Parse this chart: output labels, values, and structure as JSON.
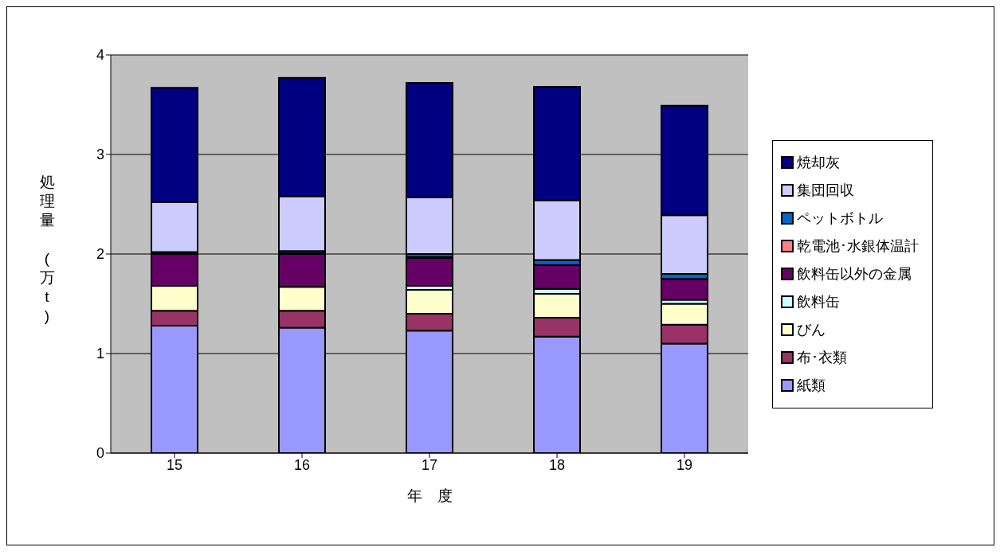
{
  "chart_data": {
    "type": "bar",
    "stacked": true,
    "xlabel": "年　度",
    "ylabel": "処理量　(万t)",
    "categories": [
      "15",
      "16",
      "17",
      "18",
      "19"
    ],
    "series": [
      {
        "name": "紙類",
        "color": "#9999ff",
        "values": [
          1.28,
          1.26,
          1.23,
          1.17,
          1.1
        ]
      },
      {
        "name": "布･衣類",
        "color": "#993366",
        "values": [
          0.15,
          0.17,
          0.17,
          0.19,
          0.19
        ]
      },
      {
        "name": "びん",
        "color": "#ffffcc",
        "values": [
          0.25,
          0.24,
          0.24,
          0.24,
          0.21
        ]
      },
      {
        "name": "飲料缶",
        "color": "#ccffff",
        "values": [
          null,
          null,
          0.04,
          0.05,
          0.04
        ]
      },
      {
        "name": "飲料缶以外の金属",
        "color": "#660066",
        "values": [
          0.32,
          0.33,
          0.28,
          0.24,
          0.21
        ]
      },
      {
        "name": "乾電池･水銀体温計",
        "color": "#ff8080",
        "values": [
          0.01,
          0.01,
          0.01,
          null,
          null
        ]
      },
      {
        "name": "ペットボトル",
        "color": "#0066cc",
        "values": [
          0.01,
          0.02,
          0.03,
          0.05,
          0.05
        ]
      },
      {
        "name": "集団回収",
        "color": "#ccccff",
        "values": [
          0.5,
          0.55,
          0.57,
          0.6,
          0.59
        ]
      },
      {
        "name": "焼却灰",
        "color": "#000080",
        "values": [
          1.15,
          1.19,
          1.15,
          1.14,
          1.1
        ]
      }
    ],
    "ylim": [
      0,
      4
    ],
    "yticks": [
      0,
      1,
      2,
      3,
      4
    ],
    "grid": "y",
    "legend": "right"
  }
}
